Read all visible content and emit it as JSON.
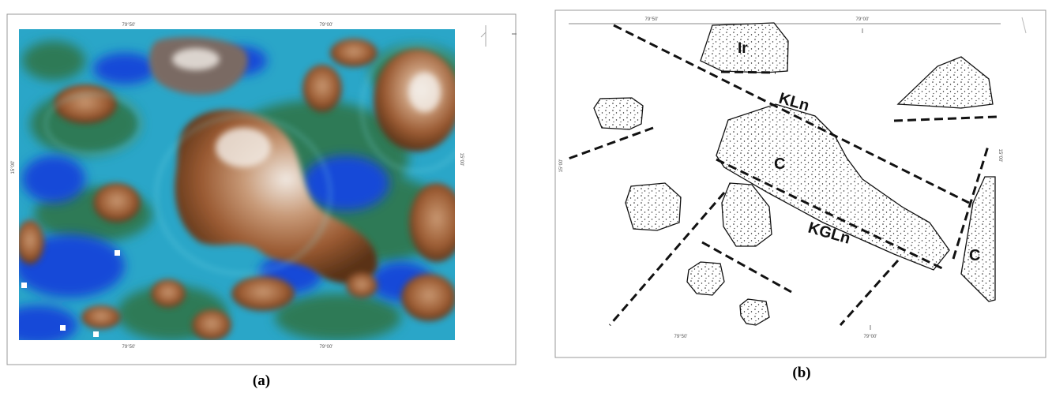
{
  "figure": {
    "panel_a": {
      "caption": "(a)",
      "ticks_top": [
        "79°50'",
        "79°00'"
      ],
      "ticks_bottom": [
        "79°50'",
        "79°00'"
      ],
      "tick_left": "15°00'",
      "tick_right": "15°00'"
    },
    "panel_b": {
      "caption": "(b)",
      "ticks_top": [
        "79°50'",
        "79°00'"
      ],
      "ticks_bottom": [
        "79°50'",
        "79°00'"
      ],
      "tick_left": "15°00'",
      "tick_right": "15°00'",
      "labels": {
        "ir": "Ir",
        "kln": "KLn",
        "c_center": "C",
        "kgln": "KGLn",
        "c_right": "C"
      }
    }
  }
}
